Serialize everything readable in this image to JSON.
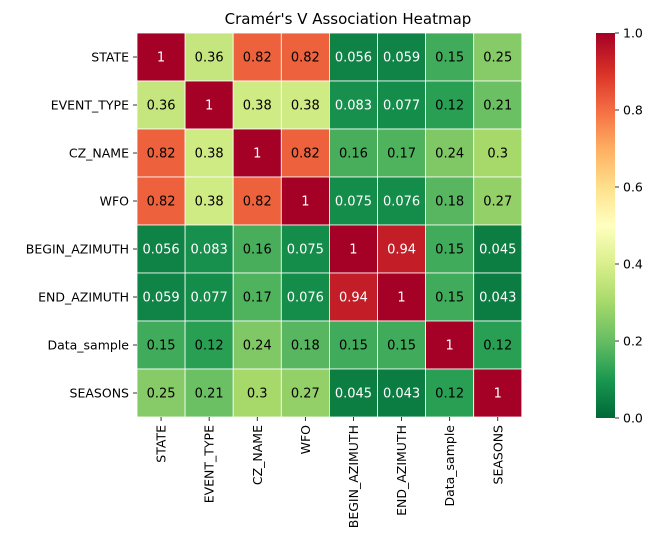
{
  "chart_data": {
    "type": "heatmap",
    "title": "Cramér's V Association Heatmap",
    "x_labels": [
      "STATE",
      "EVENT_TYPE",
      "CZ_NAME",
      "WFO",
      "BEGIN_AZIMUTH",
      "END_AZIMUTH",
      "Data_sample",
      "SEASONS"
    ],
    "y_labels": [
      "STATE",
      "EVENT_TYPE",
      "CZ_NAME",
      "WFO",
      "BEGIN_AZIMUTH",
      "END_AZIMUTH",
      "Data_sample",
      "SEASONS"
    ],
    "values": [
      [
        1,
        0.36,
        0.82,
        0.82,
        0.056,
        0.059,
        0.15,
        0.25
      ],
      [
        0.36,
        1,
        0.38,
        0.38,
        0.083,
        0.077,
        0.12,
        0.21
      ],
      [
        0.82,
        0.38,
        1,
        0.82,
        0.16,
        0.17,
        0.24,
        0.3
      ],
      [
        0.82,
        0.38,
        0.82,
        1,
        0.075,
        0.076,
        0.18,
        0.27
      ],
      [
        0.056,
        0.083,
        0.16,
        0.075,
        1,
        0.94,
        0.15,
        0.045
      ],
      [
        0.059,
        0.077,
        0.17,
        0.076,
        0.94,
        1,
        0.15,
        0.043
      ],
      [
        0.15,
        0.12,
        0.24,
        0.18,
        0.15,
        0.15,
        1,
        0.12
      ],
      [
        0.25,
        0.21,
        0.3,
        0.27,
        0.045,
        0.043,
        0.12,
        1
      ]
    ],
    "colormap": "RdYlGn_r",
    "vmin": 0,
    "vmax": 1,
    "colorbar_ticks": [
      "0.0",
      "0.2",
      "0.4",
      "0.6",
      "0.8",
      "1.0"
    ],
    "annotated": true,
    "grid": false
  }
}
